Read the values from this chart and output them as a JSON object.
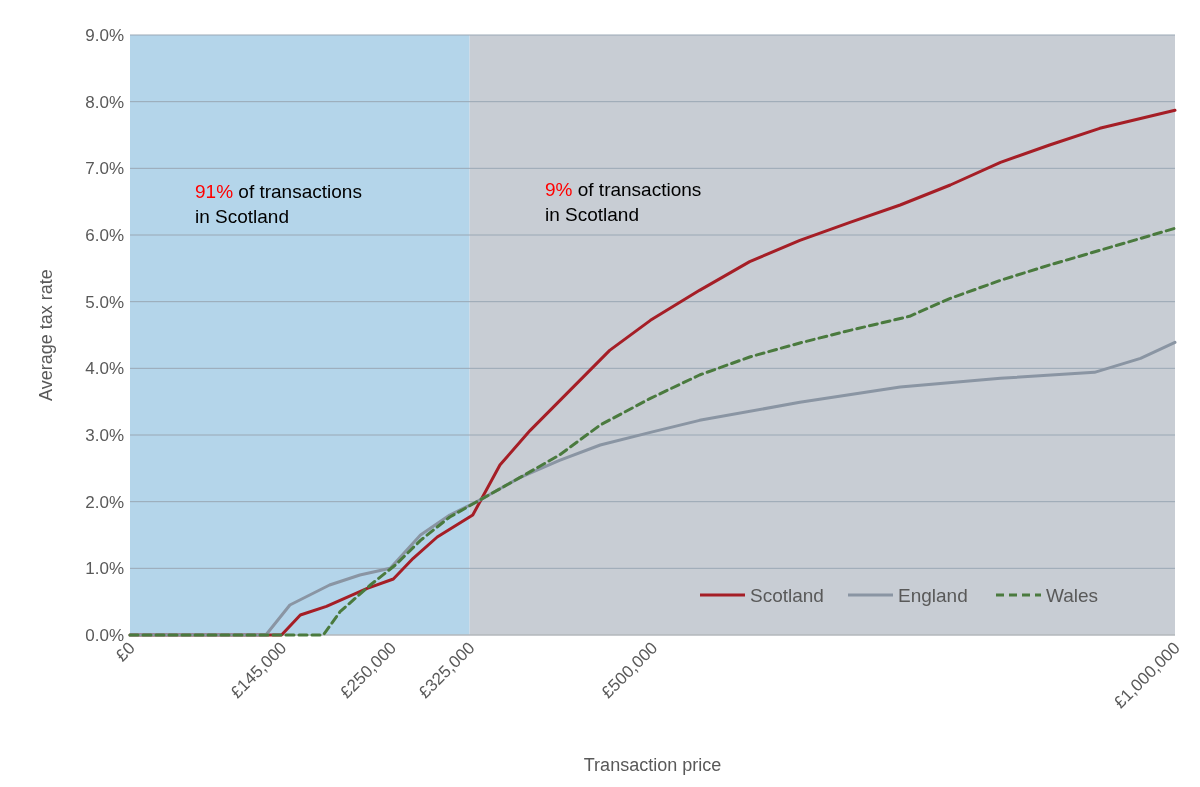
{
  "chart_data": {
    "type": "line",
    "xlabel": "Transaction price",
    "ylabel": "Average tax rate",
    "xlim": [
      0,
      1000000
    ],
    "ylim": [
      0,
      9
    ],
    "xticks": [
      {
        "value": 0,
        "label": "£0"
      },
      {
        "value": 145000,
        "label": "£145,000"
      },
      {
        "value": 250000,
        "label": "£250,000"
      },
      {
        "value": 325000,
        "label": "£325,000"
      },
      {
        "value": 500000,
        "label": "£500,000"
      },
      {
        "value": 1000000,
        "label": "£1,000,000"
      }
    ],
    "yticks": [
      {
        "value": 0,
        "label": "0.0%"
      },
      {
        "value": 1,
        "label": "1.0%"
      },
      {
        "value": 2,
        "label": "2.0%"
      },
      {
        "value": 3,
        "label": "3.0%"
      },
      {
        "value": 4,
        "label": "4.0%"
      },
      {
        "value": 5,
        "label": "5.0%"
      },
      {
        "value": 6,
        "label": "6.0%"
      },
      {
        "value": 7,
        "label": "7.0%"
      },
      {
        "value": 8,
        "label": "8.0%"
      },
      {
        "value": 9,
        "label": "9.0%"
      }
    ],
    "grid": "y",
    "legend": "bottom right",
    "bands": [
      {
        "axis": "x",
        "from": 0,
        "to": 325000,
        "color": "#b4d5ea"
      },
      {
        "axis": "x",
        "from": 325000,
        "to": 1000000,
        "color": "#c8cdd4"
      }
    ],
    "annotations": [
      "91% of transactions in Scotland",
      "9% of transactions in Scotland"
    ],
    "series": [
      {
        "name": "Scotland",
        "color": "#a51e26",
        "line_style": "solid",
        "x": [
          0,
          145000,
          163000,
          188000,
          227000,
          252000,
          271000,
          294000,
          328000,
          354000,
          383000,
          421000,
          459000,
          498000,
          545000,
          593000,
          641000,
          689000,
          737000,
          785000,
          833000,
          880000,
          928000,
          1000000
        ],
        "values": [
          0,
          0,
          0.3,
          0.43,
          0.7,
          0.84,
          1.15,
          1.47,
          1.8,
          2.55,
          3.07,
          3.67,
          4.27,
          4.72,
          5.17,
          5.6,
          5.92,
          6.19,
          6.45,
          6.75,
          7.09,
          7.35,
          7.6,
          7.87
        ]
      },
      {
        "name": "England",
        "color": "#8a95a3",
        "line_style": "solid",
        "x": [
          0,
          130000,
          153000,
          191000,
          220000,
          249000,
          278000,
          306000,
          332000,
          373000,
          411000,
          450000,
          498000,
          545000,
          641000,
          737000,
          833000,
          923000,
          967000,
          1000000
        ],
        "values": [
          0,
          0,
          0.45,
          0.75,
          0.9,
          1.0,
          1.5,
          1.8,
          2.0,
          2.36,
          2.62,
          2.85,
          3.04,
          3.22,
          3.49,
          3.72,
          3.85,
          3.94,
          4.15,
          4.39
        ]
      },
      {
        "name": "Wales",
        "color": "#4a7a3e",
        "line_style": "dashed",
        "x": [
          0,
          185000,
          201000,
          230000,
          254000,
          278000,
          306000,
          332000,
          373000,
          411000,
          450000,
          498000,
          545000,
          593000,
          641000,
          689000,
          746000,
          785000,
          833000,
          880000,
          928000,
          1000000
        ],
        "values": [
          0,
          0,
          0.35,
          0.75,
          1.05,
          1.42,
          1.77,
          2.0,
          2.36,
          2.7,
          3.15,
          3.55,
          3.9,
          4.17,
          4.38,
          4.57,
          4.78,
          5.05,
          5.32,
          5.55,
          5.77,
          6.1
        ]
      }
    ]
  }
}
